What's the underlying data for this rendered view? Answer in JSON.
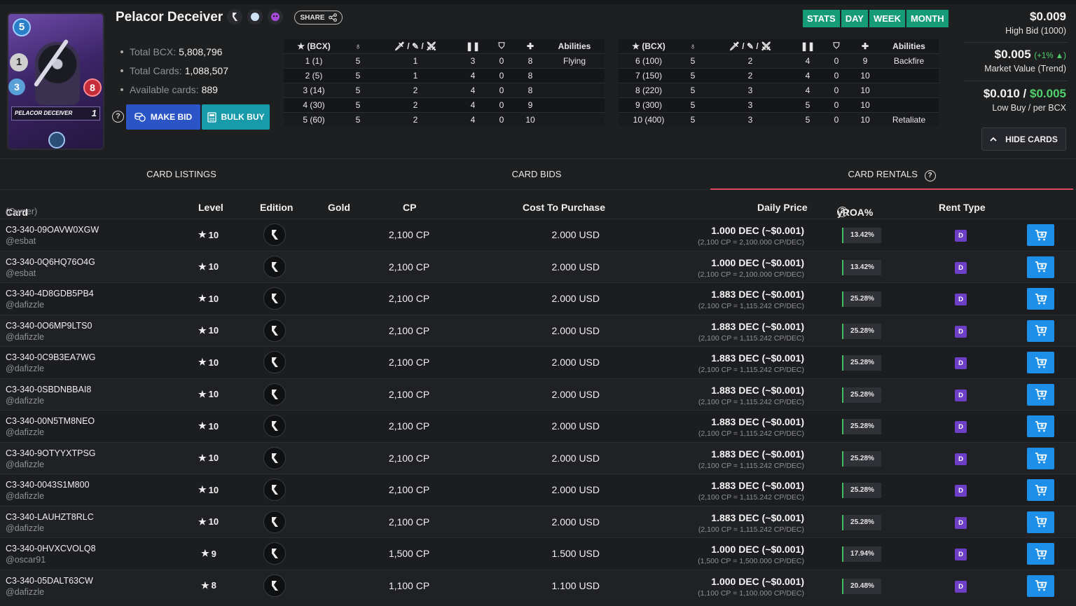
{
  "card": {
    "name": "Pelacor Deceiver",
    "mana": "5",
    "speed": "1",
    "armor": "3",
    "health": "8",
    "art_name": "Pelacor Deceiver",
    "art_level": "1",
    "icons": [
      "edition-icon",
      "splinter-icon",
      "rarity-icon"
    ]
  },
  "share": {
    "label": "SHARE"
  },
  "info": [
    {
      "label": "Total BCX:",
      "value": "5,808,796"
    },
    {
      "label": "Total Cards:",
      "value": "1,088,507"
    },
    {
      "label": "Available cards:",
      "value": "889"
    }
  ],
  "actions": {
    "make_bid": "MAKE BID",
    "bulk_buy": "BULK BUY"
  },
  "stats_left": {
    "headers": [
      "(BCX)",
      "",
      "/ /",
      "",
      "",
      "",
      "Abilities"
    ],
    "rows": [
      [
        "1 (1)",
        "5",
        "1",
        "3",
        "0",
        "8",
        "Flying"
      ],
      [
        "2 (5)",
        "5",
        "1",
        "4",
        "0",
        "8",
        ""
      ],
      [
        "3 (14)",
        "5",
        "2",
        "4",
        "0",
        "8",
        ""
      ],
      [
        "4 (30)",
        "5",
        "2",
        "4",
        "0",
        "9",
        ""
      ],
      [
        "5 (60)",
        "5",
        "2",
        "4",
        "0",
        "10",
        ""
      ]
    ]
  },
  "stats_right": {
    "headers": [
      "(BCX)",
      "",
      "/ /",
      "",
      "",
      "",
      "Abilities"
    ],
    "rows": [
      [
        "6 (100)",
        "5",
        "2",
        "4",
        "0",
        "9",
        "Backfire"
      ],
      [
        "7 (150)",
        "5",
        "2",
        "4",
        "0",
        "10",
        ""
      ],
      [
        "8 (220)",
        "5",
        "3",
        "4",
        "0",
        "10",
        ""
      ],
      [
        "9 (300)",
        "5",
        "3",
        "5",
        "0",
        "10",
        ""
      ],
      [
        "10 (400)",
        "5",
        "3",
        "5",
        "0",
        "10",
        "Retaliate"
      ]
    ]
  },
  "periods": [
    "STATS",
    "DAY",
    "WEEK",
    "MONTH"
  ],
  "prices": {
    "high_bid": "$0.009",
    "high_bid_label": "High Bid (1000)",
    "market_value": "$0.005",
    "trend": "(+1%",
    "trend_close": ")",
    "market_label": "Market Value (Trend)",
    "low_buy": "$0.010",
    "low_buy_sep": " / ",
    "per_bcx": "$0.005",
    "low_buy_label": "Low Buy / per BCX"
  },
  "hide_cards": "HIDE CARDS",
  "tabs": [
    "CARD LISTINGS",
    "CARD BIDS",
    "CARD RENTALS"
  ],
  "columns": {
    "card": "Card",
    "owner": "(Owner)",
    "level": "Level",
    "edition": "Edition",
    "gold": "Gold",
    "cp": "CP",
    "cost": "Cost To Purchase",
    "daily": "Daily Price",
    "yroa": "yROA%",
    "rent_type": "Rent Type"
  },
  "rentals": [
    {
      "uid": "C3-340-09OAVW0XGW",
      "owner": "@esbat",
      "level": "10",
      "cp": "2,100 CP",
      "cost": "2.000 USD",
      "daily": "1.000 DEC (~$0.001)",
      "detail": "(2,100 CP = 2,100.000 CP/DEC)",
      "yroa": "13.42%",
      "rent_type": "D"
    },
    {
      "uid": "C3-340-0Q6HQ76O4G",
      "owner": "@esbat",
      "level": "10",
      "cp": "2,100 CP",
      "cost": "2.000 USD",
      "daily": "1.000 DEC (~$0.001)",
      "detail": "(2,100 CP = 2,100.000 CP/DEC)",
      "yroa": "13.42%",
      "rent_type": "D"
    },
    {
      "uid": "C3-340-4D8GDB5PB4",
      "owner": "@dafizzle",
      "level": "10",
      "cp": "2,100 CP",
      "cost": "2.000 USD",
      "daily": "1.883 DEC (~$0.001)",
      "detail": "(2,100 CP = 1,115.242 CP/DEC)",
      "yroa": "25.28%",
      "rent_type": "D"
    },
    {
      "uid": "C3-340-0O6MP9LTS0",
      "owner": "@dafizzle",
      "level": "10",
      "cp": "2,100 CP",
      "cost": "2.000 USD",
      "daily": "1.883 DEC (~$0.001)",
      "detail": "(2,100 CP = 1,115.242 CP/DEC)",
      "yroa": "25.28%",
      "rent_type": "D"
    },
    {
      "uid": "C3-340-0C9B3EA7WG",
      "owner": "@dafizzle",
      "level": "10",
      "cp": "2,100 CP",
      "cost": "2.000 USD",
      "daily": "1.883 DEC (~$0.001)",
      "detail": "(2,100 CP = 1,115.242 CP/DEC)",
      "yroa": "25.28%",
      "rent_type": "D"
    },
    {
      "uid": "C3-340-0SBDNBBAI8",
      "owner": "@dafizzle",
      "level": "10",
      "cp": "2,100 CP",
      "cost": "2.000 USD",
      "daily": "1.883 DEC (~$0.001)",
      "detail": "(2,100 CP = 1,115.242 CP/DEC)",
      "yroa": "25.28%",
      "rent_type": "D"
    },
    {
      "uid": "C3-340-00N5TM8NEO",
      "owner": "@dafizzle",
      "level": "10",
      "cp": "2,100 CP",
      "cost": "2.000 USD",
      "daily": "1.883 DEC (~$0.001)",
      "detail": "(2,100 CP = 1,115.242 CP/DEC)",
      "yroa": "25.28%",
      "rent_type": "D"
    },
    {
      "uid": "C3-340-9OTYYXTPSG",
      "owner": "@dafizzle",
      "level": "10",
      "cp": "2,100 CP",
      "cost": "2.000 USD",
      "daily": "1.883 DEC (~$0.001)",
      "detail": "(2,100 CP = 1,115.242 CP/DEC)",
      "yroa": "25.28%",
      "rent_type": "D"
    },
    {
      "uid": "C3-340-0043S1M800",
      "owner": "@dafizzle",
      "level": "10",
      "cp": "2,100 CP",
      "cost": "2.000 USD",
      "daily": "1.883 DEC (~$0.001)",
      "detail": "(2,100 CP = 1,115.242 CP/DEC)",
      "yroa": "25.28%",
      "rent_type": "D"
    },
    {
      "uid": "C3-340-LAUHZT8RLC",
      "owner": "@dafizzle",
      "level": "10",
      "cp": "2,100 CP",
      "cost": "2.000 USD",
      "daily": "1.883 DEC (~$0.001)",
      "detail": "(2,100 CP = 1,115.242 CP/DEC)",
      "yroa": "25.28%",
      "rent_type": "D"
    },
    {
      "uid": "C3-340-0HVXCVOLQ8",
      "owner": "@oscar91",
      "level": "9",
      "cp": "1,500 CP",
      "cost": "1.500 USD",
      "daily": "1.000 DEC (~$0.001)",
      "detail": "(1,500 CP = 1,500.000 CP/DEC)",
      "yroa": "17.94%",
      "rent_type": "D"
    },
    {
      "uid": "C3-340-05DALT63CW",
      "owner": "@dafizzle",
      "level": "8",
      "cp": "1,100 CP",
      "cost": "1.100 USD",
      "daily": "1.000 DEC (~$0.001)",
      "detail": "(1,100 CP = 1,100.000 CP/DEC)",
      "yroa": "20.48%",
      "rent_type": "D"
    }
  ]
}
